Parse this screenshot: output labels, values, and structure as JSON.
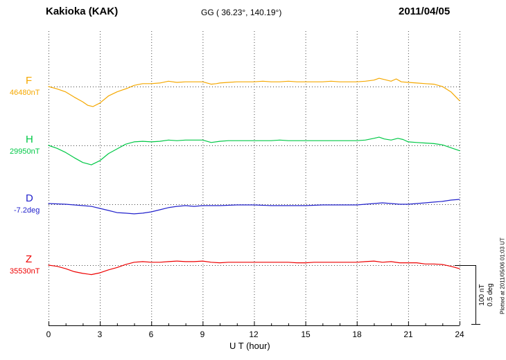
{
  "header": {
    "station": "Kakioka (KAK)",
    "coords": "GG ( 36.23°, 140.19°)",
    "date": "2011/04/05"
  },
  "axis": {
    "xlabel": "U T (hour)",
    "ticks": [
      "0",
      "3",
      "6",
      "9",
      "12",
      "15",
      "18",
      "21",
      "24"
    ]
  },
  "scale_bar": {
    "nT_label": "100 nT",
    "deg_label": "0.5 deg"
  },
  "footer_note": "Plotted at 2011/05/06 01:03 UT",
  "chart_data": {
    "type": "line",
    "title": "Kakioka (KAK) magnetogram 2011/04/05",
    "xlabel": "U T (hour)",
    "xlim": [
      0,
      24
    ],
    "x_ticks": [
      0,
      3,
      6,
      9,
      12,
      15,
      18,
      21,
      24
    ],
    "grid": "dotted vertical gridlines at 3-hour intervals, dotted horizontal baseline per component",
    "scale_reference": {
      "nT": 100,
      "deg": 0.5
    },
    "series": [
      {
        "name": "F",
        "unit": "nT",
        "color": "#f5a800",
        "baseline_label": "46480nT",
        "baseline_value": 46480,
        "points": [
          [
            0,
            46480
          ],
          [
            0.5,
            46476
          ],
          [
            1,
            46471
          ],
          [
            1.5,
            46462
          ],
          [
            2,
            46454
          ],
          [
            2.3,
            46448
          ],
          [
            2.6,
            46446
          ],
          [
            3,
            46452
          ],
          [
            3.5,
            46464
          ],
          [
            4,
            46471
          ],
          [
            4.3,
            46474
          ],
          [
            4.6,
            46477
          ],
          [
            5,
            46482
          ],
          [
            5.5,
            46485
          ],
          [
            6,
            46485
          ],
          [
            6.5,
            46486
          ],
          [
            7,
            46489
          ],
          [
            7.5,
            46487
          ],
          [
            8,
            46488
          ],
          [
            8.5,
            46488
          ],
          [
            9,
            46488
          ],
          [
            9.5,
            46484
          ],
          [
            9.8,
            46485
          ],
          [
            10,
            46486
          ],
          [
            10.5,
            46487
          ],
          [
            11,
            46488
          ],
          [
            11.5,
            46488
          ],
          [
            12,
            46488
          ],
          [
            12.5,
            46489
          ],
          [
            13,
            46488
          ],
          [
            13.5,
            46488
          ],
          [
            14,
            46489
          ],
          [
            14.5,
            46488
          ],
          [
            15,
            46488
          ],
          [
            15.5,
            46488
          ],
          [
            16,
            46488
          ],
          [
            16.5,
            46489
          ],
          [
            17,
            46488
          ],
          [
            17.5,
            46488
          ],
          [
            18,
            46488
          ],
          [
            18.5,
            46489
          ],
          [
            19,
            46491
          ],
          [
            19.3,
            46494
          ],
          [
            19.6,
            46492
          ],
          [
            20,
            46489
          ],
          [
            20.3,
            46493
          ],
          [
            20.6,
            46488
          ],
          [
            21,
            46487
          ],
          [
            21.5,
            46486
          ],
          [
            22,
            46485
          ],
          [
            22.5,
            46484
          ],
          [
            23,
            46480
          ],
          [
            23.5,
            46471
          ],
          [
            24,
            46456
          ]
        ]
      },
      {
        "name": "H",
        "unit": "nT",
        "color": "#00c846",
        "baseline_label": "29950nT",
        "baseline_value": 29950,
        "points": [
          [
            0,
            29950
          ],
          [
            0.5,
            29945
          ],
          [
            1,
            29938
          ],
          [
            1.5,
            29929
          ],
          [
            2,
            29921
          ],
          [
            2.5,
            29917
          ],
          [
            3,
            29924
          ],
          [
            3.5,
            29936
          ],
          [
            4,
            29944
          ],
          [
            4.5,
            29952
          ],
          [
            5,
            29956
          ],
          [
            5.5,
            29957
          ],
          [
            6,
            29956
          ],
          [
            6.5,
            29957
          ],
          [
            7,
            29959
          ],
          [
            7.5,
            29958
          ],
          [
            8,
            29959
          ],
          [
            8.5,
            29959
          ],
          [
            9,
            29959
          ],
          [
            9.5,
            29955
          ],
          [
            10,
            29957
          ],
          [
            10.5,
            29958
          ],
          [
            11,
            29958
          ],
          [
            11.5,
            29958
          ],
          [
            12,
            29958
          ],
          [
            12.5,
            29958
          ],
          [
            13,
            29958
          ],
          [
            13.5,
            29959
          ],
          [
            14,
            29958
          ],
          [
            14.5,
            29958
          ],
          [
            15,
            29958
          ],
          [
            15.5,
            29958
          ],
          [
            16,
            29958
          ],
          [
            16.5,
            29958
          ],
          [
            17,
            29958
          ],
          [
            17.5,
            29958
          ],
          [
            18,
            29958
          ],
          [
            18.5,
            29959
          ],
          [
            19,
            29962
          ],
          [
            19.3,
            29964
          ],
          [
            19.6,
            29961
          ],
          [
            20,
            29959
          ],
          [
            20.4,
            29962
          ],
          [
            20.7,
            29960
          ],
          [
            21,
            29956
          ],
          [
            21.5,
            29955
          ],
          [
            22,
            29954
          ],
          [
            22.5,
            29953
          ],
          [
            23,
            29951
          ],
          [
            23.5,
            29946
          ],
          [
            24,
            29941
          ]
        ]
      },
      {
        "name": "D",
        "unit": "deg",
        "color": "#2222cc",
        "baseline_label": "-7.2deg",
        "baseline_value": -7.2,
        "points": [
          [
            0,
            -7.194
          ],
          [
            0.5,
            -7.197
          ],
          [
            1,
            -7.2
          ],
          [
            1.5,
            -7.206
          ],
          [
            2,
            -7.212
          ],
          [
            2.5,
            -7.218
          ],
          [
            3,
            -7.235
          ],
          [
            3.5,
            -7.253
          ],
          [
            4,
            -7.271
          ],
          [
            4.5,
            -7.276
          ],
          [
            5,
            -7.282
          ],
          [
            5.5,
            -7.276
          ],
          [
            6,
            -7.265
          ],
          [
            6.5,
            -7.247
          ],
          [
            7,
            -7.229
          ],
          [
            7.5,
            -7.218
          ],
          [
            8,
            -7.212
          ],
          [
            8.5,
            -7.218
          ],
          [
            9,
            -7.212
          ],
          [
            9.5,
            -7.212
          ],
          [
            10,
            -7.212
          ],
          [
            10.5,
            -7.209
          ],
          [
            11,
            -7.206
          ],
          [
            11.5,
            -7.206
          ],
          [
            12,
            -7.206
          ],
          [
            12.5,
            -7.209
          ],
          [
            13,
            -7.212
          ],
          [
            13.5,
            -7.212
          ],
          [
            14,
            -7.212
          ],
          [
            14.5,
            -7.212
          ],
          [
            15,
            -7.212
          ],
          [
            15.5,
            -7.209
          ],
          [
            16,
            -7.206
          ],
          [
            16.5,
            -7.206
          ],
          [
            17,
            -7.206
          ],
          [
            17.5,
            -7.206
          ],
          [
            18,
            -7.206
          ],
          [
            18.5,
            -7.2
          ],
          [
            19,
            -7.194
          ],
          [
            19.5,
            -7.188
          ],
          [
            20,
            -7.194
          ],
          [
            20.5,
            -7.2
          ],
          [
            21,
            -7.2
          ],
          [
            21.5,
            -7.194
          ],
          [
            22,
            -7.188
          ],
          [
            22.5,
            -7.182
          ],
          [
            23,
            -7.176
          ],
          [
            23.5,
            -7.165
          ],
          [
            24,
            -7.159
          ]
        ]
      },
      {
        "name": "Z",
        "unit": "nT",
        "color": "#ee0000",
        "baseline_label": "35530nT",
        "baseline_value": 35530,
        "points": [
          [
            0,
            35530
          ],
          [
            0.5,
            35528
          ],
          [
            1,
            35524
          ],
          [
            1.5,
            35519
          ],
          [
            2,
            35516
          ],
          [
            2.5,
            35514
          ],
          [
            3,
            35517
          ],
          [
            3.5,
            35522
          ],
          [
            4,
            35526
          ],
          [
            4.5,
            35531
          ],
          [
            5,
            35535
          ],
          [
            5.5,
            35536
          ],
          [
            6,
            35535
          ],
          [
            6.5,
            35535
          ],
          [
            7,
            35536
          ],
          [
            7.5,
            35537
          ],
          [
            8,
            35536
          ],
          [
            8.5,
            35536
          ],
          [
            9,
            35537
          ],
          [
            9.5,
            35535
          ],
          [
            10,
            35534
          ],
          [
            10.5,
            35535
          ],
          [
            11,
            35535
          ],
          [
            11.5,
            35535
          ],
          [
            12,
            35535
          ],
          [
            12.5,
            35535
          ],
          [
            13,
            35535
          ],
          [
            13.5,
            35535
          ],
          [
            14,
            35535
          ],
          [
            14.5,
            35534
          ],
          [
            15,
            35534
          ],
          [
            15.5,
            35535
          ],
          [
            16,
            35535
          ],
          [
            16.5,
            35535
          ],
          [
            17,
            35535
          ],
          [
            17.5,
            35535
          ],
          [
            18,
            35535
          ],
          [
            18.5,
            35536
          ],
          [
            19,
            35537
          ],
          [
            19.5,
            35535
          ],
          [
            20,
            35536
          ],
          [
            20.5,
            35534
          ],
          [
            21,
            35534
          ],
          [
            21.5,
            35534
          ],
          [
            22,
            35532
          ],
          [
            22.5,
            35532
          ],
          [
            23,
            35531
          ],
          [
            23.5,
            35528
          ],
          [
            24,
            35524
          ]
        ]
      }
    ]
  }
}
